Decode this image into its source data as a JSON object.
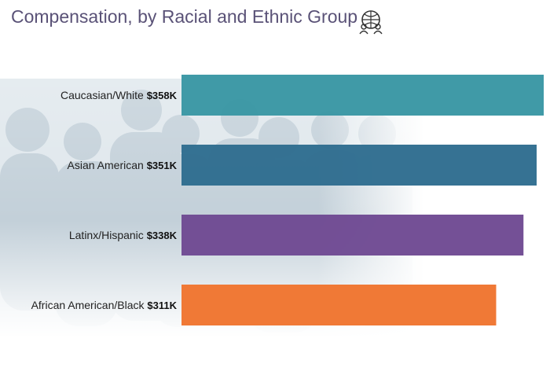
{
  "title": "Compensation, by Racial and Ethnic Group",
  "logo": {
    "icon": "globe-people-icon"
  },
  "background": {
    "type": "photo-of-healthcare-workers",
    "tint": "#c9d6df"
  },
  "chart_data": {
    "type": "bar",
    "orientation": "horizontal",
    "categories": [
      "Caucasian/White",
      "Asian American",
      "Latinx/Hispanic",
      "African American/Black"
    ],
    "values": [
      358,
      351,
      338,
      311
    ],
    "value_labels": [
      "$358K",
      "$351K",
      "$338K",
      "$311K"
    ],
    "colors": [
      "#3a97a4",
      "#2f6d8f",
      "#6f4a93",
      "#ef7530"
    ],
    "title": "Compensation, by Racial and Ethnic Group",
    "xlabel": "",
    "ylabel": "",
    "grid": false,
    "legend": "none"
  }
}
